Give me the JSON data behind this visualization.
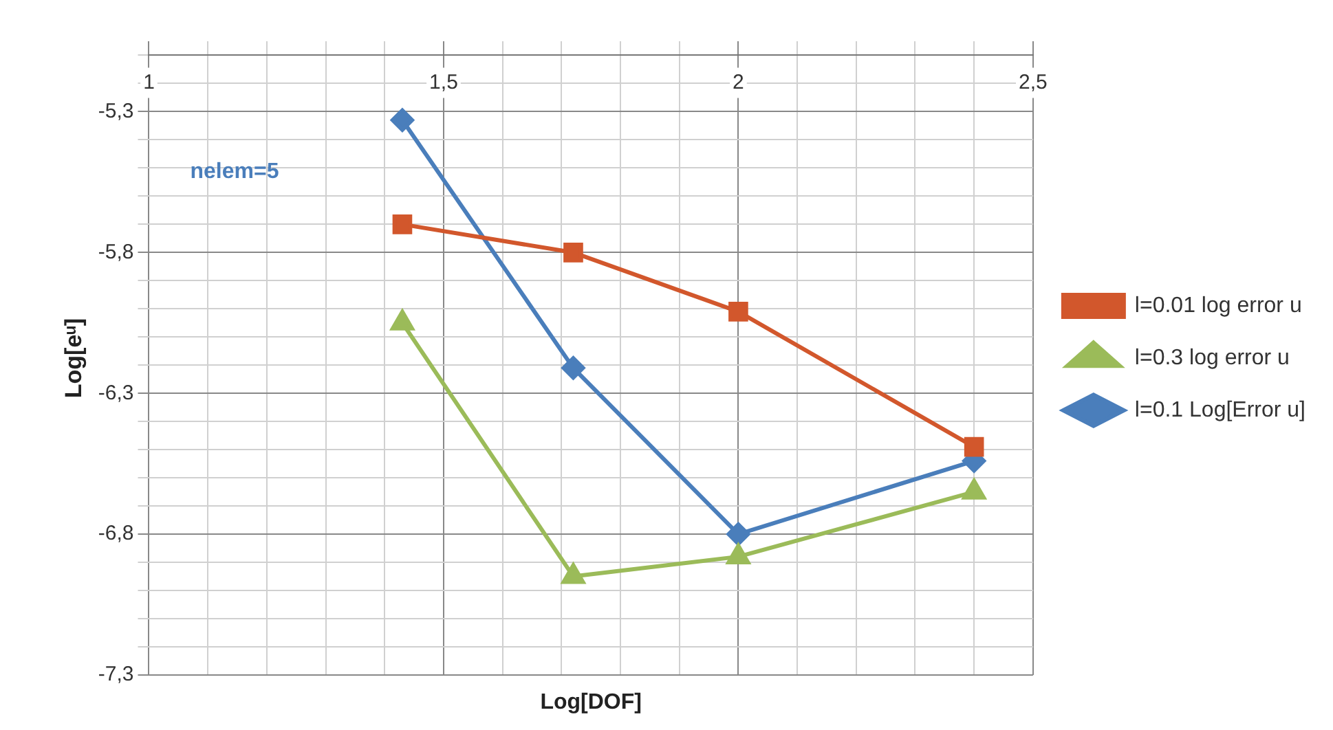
{
  "chart_data": {
    "type": "line",
    "xlabel": "Log[DOF]",
    "ylabel": "Log[eᵘ]",
    "annotations": [
      "nelem=5"
    ],
    "xlim": [
      1,
      2.5
    ],
    "xticks": [
      {
        "value": 1,
        "label": "1"
      },
      {
        "value": 1.1,
        "label": null
      },
      {
        "value": 1.2,
        "label": null
      },
      {
        "value": 1.3,
        "label": null
      },
      {
        "value": 1.4,
        "label": null
      },
      {
        "value": 1.5,
        "label": "1,5"
      },
      {
        "value": 1.6,
        "label": null
      },
      {
        "value": 1.7,
        "label": null
      },
      {
        "value": 1.8,
        "label": null
      },
      {
        "value": 1.9,
        "label": null
      },
      {
        "value": 2,
        "label": "2"
      },
      {
        "value": 2.1,
        "label": null
      },
      {
        "value": 2.2,
        "label": null
      },
      {
        "value": 2.3,
        "label": null
      },
      {
        "value": 2.4,
        "label": null
      },
      {
        "value": 2.5,
        "label": "2,5"
      }
    ],
    "ylim": [
      -7.3,
      -5.05
    ],
    "yticks": [
      {
        "value": -7.3,
        "label": "-7,3"
      },
      {
        "value": -7.2,
        "label": null
      },
      {
        "value": -7.1,
        "label": null
      },
      {
        "value": -7,
        "label": null
      },
      {
        "value": -6.9,
        "label": null
      },
      {
        "value": -6.8,
        "label": "-6,8"
      },
      {
        "value": -6.7,
        "label": null
      },
      {
        "value": -6.6,
        "label": null
      },
      {
        "value": -6.5,
        "label": null
      },
      {
        "value": -6.4,
        "label": null
      },
      {
        "value": -6.3,
        "label": "-6,3"
      },
      {
        "value": -6.2,
        "label": null
      },
      {
        "value": -6.1,
        "label": null
      },
      {
        "value": -6,
        "label": null
      },
      {
        "value": -5.9,
        "label": null
      },
      {
        "value": -5.8,
        "label": "-5,8"
      },
      {
        "value": -5.7,
        "label": null
      },
      {
        "value": -5.6,
        "label": null
      },
      {
        "value": -5.5,
        "label": null
      },
      {
        "value": -5.4,
        "label": null
      },
      {
        "value": -5.3,
        "label": "-5,3"
      },
      {
        "value": -5.2,
        "label": null
      },
      {
        "value": -5.1,
        "label": null
      }
    ],
    "grid": true,
    "legend": "right",
    "line_style": "solid",
    "x": [
      1.43,
      1.72,
      2.0,
      2.4
    ],
    "series": [
      {
        "name": "l=0.01 log error u",
        "color": "#d2572c",
        "marker": "square",
        "values": [
          -5.7,
          -5.8,
          -6.01,
          -6.49
        ]
      },
      {
        "name": "l=0.3 log error u",
        "color": "#9bbb59",
        "marker": "triangle",
        "values": [
          -6.05,
          -6.95,
          -6.88,
          -6.65
        ]
      },
      {
        "name": "l=0.1 Log[Error u]",
        "color": "#4a7ebb",
        "marker": "diamond",
        "values": [
          -5.33,
          -6.21,
          -6.8,
          -6.54
        ]
      }
    ]
  }
}
